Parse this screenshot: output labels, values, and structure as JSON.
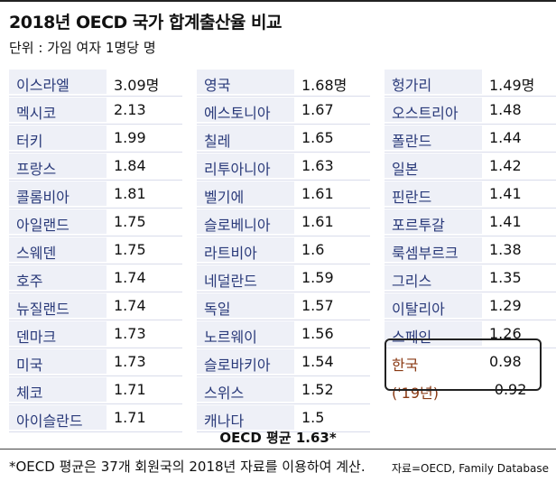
{
  "header": {
    "title": "2018년 OECD 국가 합계출산율 비교",
    "subtitle": "단위 : 가임 여자 1명당 명"
  },
  "chart_data": {
    "type": "table",
    "title": "2018년 OECD 국가 합계출산율 비교",
    "unit": "단위 : 가임 여자 1명당 명",
    "columns": [
      [
        {
          "country": "이스라엘",
          "value": "3.09명"
        },
        {
          "country": "멕시코",
          "value": "2.13"
        },
        {
          "country": "터키",
          "value": "1.99"
        },
        {
          "country": "프랑스",
          "value": "1.84"
        },
        {
          "country": "콜롬비아",
          "value": "1.81"
        },
        {
          "country": "아일랜드",
          "value": "1.75"
        },
        {
          "country": "스웨덴",
          "value": "1.75"
        },
        {
          "country": "호주",
          "value": "1.74"
        },
        {
          "country": "뉴질랜드",
          "value": "1.74"
        },
        {
          "country": "덴마크",
          "value": "1.73"
        },
        {
          "country": "미국",
          "value": "1.73"
        },
        {
          "country": "체코",
          "value": "1.71"
        },
        {
          "country": "아이슬란드",
          "value": "1.71"
        }
      ],
      [
        {
          "country": "영국",
          "value": "1.68명"
        },
        {
          "country": "에스토니아",
          "value": "1.67"
        },
        {
          "country": "칠레",
          "value": "1.65"
        },
        {
          "country": "리투아니아",
          "value": "1.63"
        },
        {
          "country": "벨기에",
          "value": "1.61"
        },
        {
          "country": "슬로베니아",
          "value": "1.61"
        },
        {
          "country": "라트비아",
          "value": "1.6"
        },
        {
          "country": "네덜란드",
          "value": "1.59"
        },
        {
          "country": "독일",
          "value": "1.57"
        },
        {
          "country": "노르웨이",
          "value": "1.56"
        },
        {
          "country": "슬로바키아",
          "value": "1.54"
        },
        {
          "country": "스위스",
          "value": "1.52"
        },
        {
          "country": "캐나다",
          "value": "1.5"
        }
      ],
      [
        {
          "country": "헝가리",
          "value": "1.49명"
        },
        {
          "country": "오스트리아",
          "value": "1.48"
        },
        {
          "country": "폴란드",
          "value": "1.44"
        },
        {
          "country": "일본",
          "value": "1.42"
        },
        {
          "country": "핀란드",
          "value": "1.41"
        },
        {
          "country": "포르투갈",
          "value": "1.41"
        },
        {
          "country": "룩셈부르크",
          "value": "1.38"
        },
        {
          "country": "그리스",
          "value": "1.35"
        },
        {
          "country": "이탈리아",
          "value": "1.29"
        },
        {
          "country": "스페인",
          "value": "1.26"
        },
        {
          "country": "한국",
          "value": "0.98",
          "highlight": true
        },
        {
          "country": "('19년)",
          "value": "-0.92",
          "highlight": true
        }
      ]
    ],
    "average_label": "OECD 평균 1.63*"
  },
  "footer": {
    "footnote": "*OECD 평균은 37개 회원국의 2018년 자료를 이용하여 계산.",
    "source": "자료=OECD, Family Database"
  },
  "colors": {
    "country_text": "#2a3a7a",
    "highlight_text": "#8a3a14",
    "band": "#eef0f7"
  }
}
